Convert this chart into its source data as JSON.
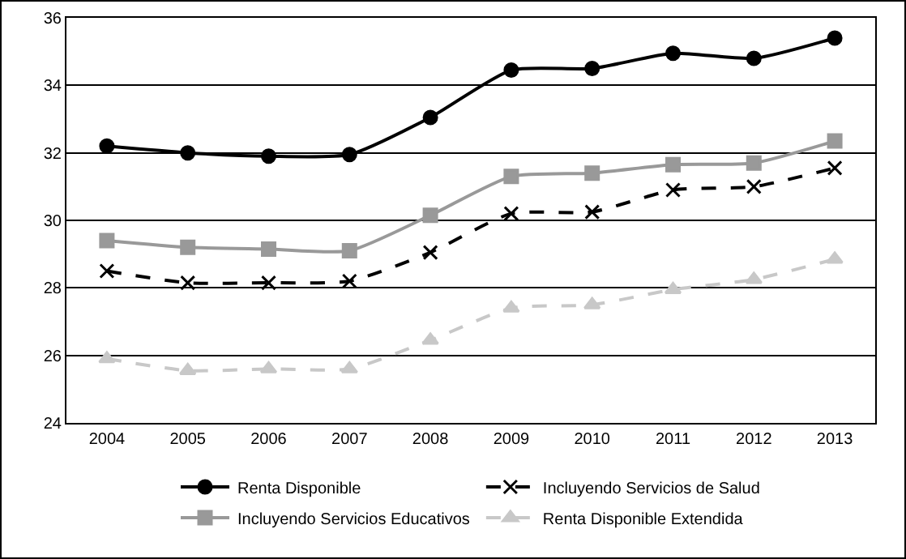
{
  "chart_data": {
    "type": "line",
    "categories": [
      "2004",
      "2005",
      "2006",
      "2007",
      "2008",
      "2009",
      "2010",
      "2011",
      "2012",
      "2013"
    ],
    "ylim": [
      24,
      36
    ],
    "yticks": [
      24,
      26,
      28,
      30,
      32,
      34,
      36
    ],
    "grid": "y",
    "legend": "bottom",
    "series": [
      {
        "name": "Renta Disponible",
        "color": "#000000",
        "marker": "circle",
        "line_style": "solid",
        "values": [
          32.2,
          32.0,
          31.9,
          31.95,
          33.05,
          34.45,
          34.5,
          34.95,
          34.8,
          35.4
        ]
      },
      {
        "name": "Incluyendo Servicios de Salud",
        "color": "#000000",
        "marker": "cross",
        "line_style": "dashed",
        "values": [
          28.5,
          28.15,
          28.15,
          28.2,
          29.05,
          30.2,
          30.25,
          30.9,
          31.0,
          31.55
        ]
      },
      {
        "name": "Incluyendo Servicios Educativos",
        "color": "#999999",
        "marker": "square",
        "line_style": "solid",
        "values": [
          29.4,
          29.2,
          29.15,
          29.1,
          30.15,
          31.3,
          31.4,
          31.65,
          31.7,
          32.35
        ]
      },
      {
        "name": "Renta Disponible Extendida",
        "color": "#c8c8c8",
        "marker": "triangle",
        "line_style": "dashed",
        "values": [
          25.9,
          25.55,
          25.6,
          25.6,
          26.45,
          27.4,
          27.5,
          27.95,
          28.25,
          28.85
        ]
      }
    ]
  }
}
